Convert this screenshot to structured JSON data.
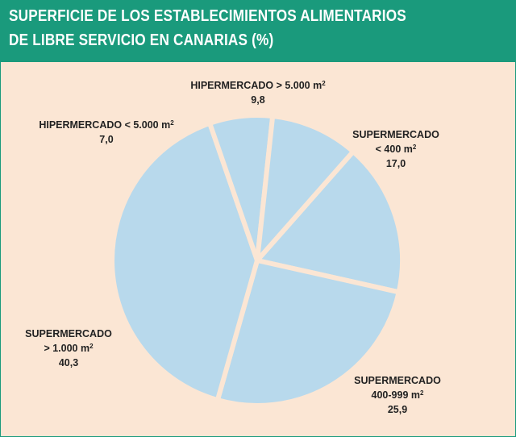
{
  "header": {
    "title_line1": "SUPERFICIE DE LOS ESTABLECIMIENTOS ALIMENTARIOS",
    "title_line2": "DE LIBRE SERVICIO EN CANARIAS (%)"
  },
  "colors": {
    "header_bg": "#1a9a7c",
    "panel_bg": "#fbe6d4",
    "slice_fill": "#b8d9ec",
    "slice_border": "#fbe6d4",
    "label_text": "#222222"
  },
  "chart_data": {
    "type": "pie",
    "title": "SUPERFICIE DE LOS ESTABLECIMIENTOS ALIMENTARIOS DE LIBRE SERVICIO EN CANARIAS (%)",
    "slices": [
      {
        "name": "SUPERMERCADO < 400 m²",
        "line1": "SUPERMERCADO",
        "line2": "< 400 m",
        "sup": "2",
        "value": 17.0,
        "value_label": "17,0"
      },
      {
        "name": "SUPERMERCADO 400-999 m²",
        "line1": "SUPERMERCADO",
        "line2": "400-999 m",
        "sup": "2",
        "value": 25.9,
        "value_label": "25,9"
      },
      {
        "name": "SUPERMERCADO > 1.000 m²",
        "line1": "SUPERMERCADO",
        "line2": "> 1.000 m",
        "sup": "2",
        "value": 40.3,
        "value_label": "40,3"
      },
      {
        "name": "HIPERMERCADO < 5.000 m²",
        "line1": "HIPERMERCADO < 5.000 m",
        "line2": "",
        "sup": "2",
        "value": 7.0,
        "value_label": "7,0"
      },
      {
        "name": "HIPERMERCADO > 5.000 m²",
        "line1": "HIPERMERCADO > 5.000 m",
        "line2": "",
        "sup": "2",
        "value": 9.8,
        "value_label": "9,8"
      }
    ]
  }
}
